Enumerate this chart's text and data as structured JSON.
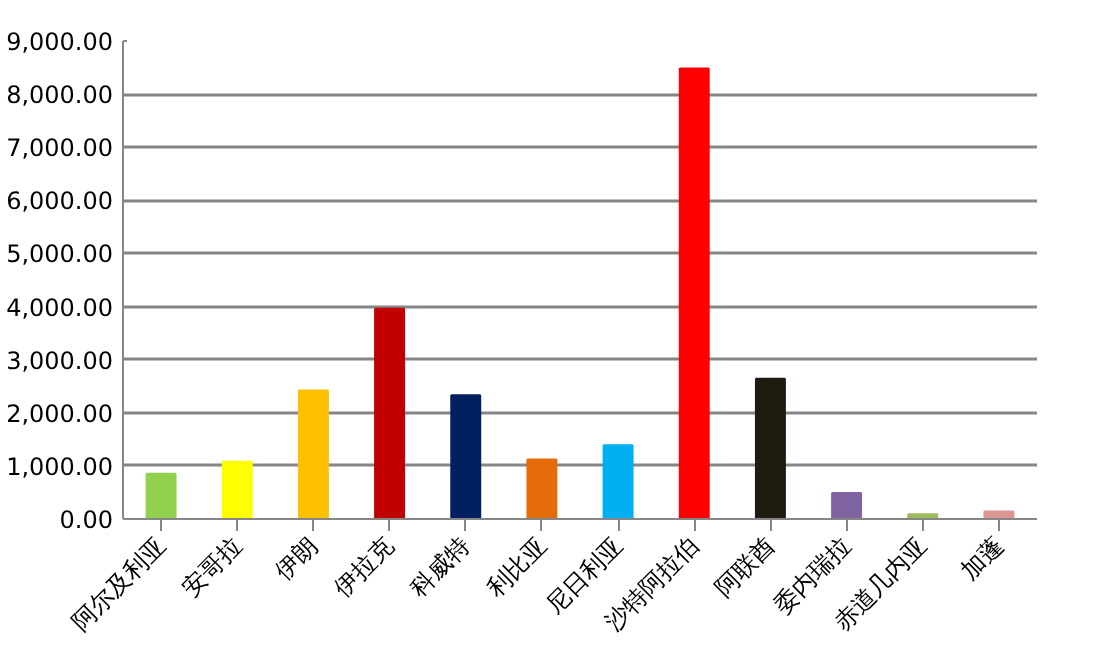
{
  "chart_data": {
    "type": "bar",
    "categories": [
      "阿尔及利亚",
      "安哥拉",
      "伊朗",
      "伊拉克",
      "科威特",
      "利比亚",
      "尼日利亚",
      "沙特阿拉伯",
      "阿联酋",
      "委内瑞拉",
      "赤道几内亚",
      "加蓬"
    ],
    "values": [
      850,
      1080,
      2420,
      3960,
      2330,
      1120,
      1390,
      8480,
      2640,
      490,
      90,
      140
    ],
    "colors": [
      "#92d050",
      "#ffff00",
      "#ffc000",
      "#c00000",
      "#002060",
      "#e46c0a",
      "#00b0f0",
      "#ff0000",
      "#1f1a10",
      "#8064a2",
      "#9bbb59",
      "#d99694"
    ],
    "ylim": [
      0,
      9000
    ],
    "yticks": [
      {
        "value": 0,
        "label": "0.00"
      },
      {
        "value": 1000,
        "label": "1,000.00"
      },
      {
        "value": 2000,
        "label": "2,000.00"
      },
      {
        "value": 3000,
        "label": "3,000.00"
      },
      {
        "value": 4000,
        "label": "4,000.00"
      },
      {
        "value": 5000,
        "label": "5,000.00"
      },
      {
        "value": 6000,
        "label": "6,000.00"
      },
      {
        "value": 7000,
        "label": "7,000.00"
      },
      {
        "value": 8000,
        "label": "8,000.00"
      },
      {
        "value": 9000,
        "label": "9,000.00"
      }
    ],
    "grid": "y"
  }
}
